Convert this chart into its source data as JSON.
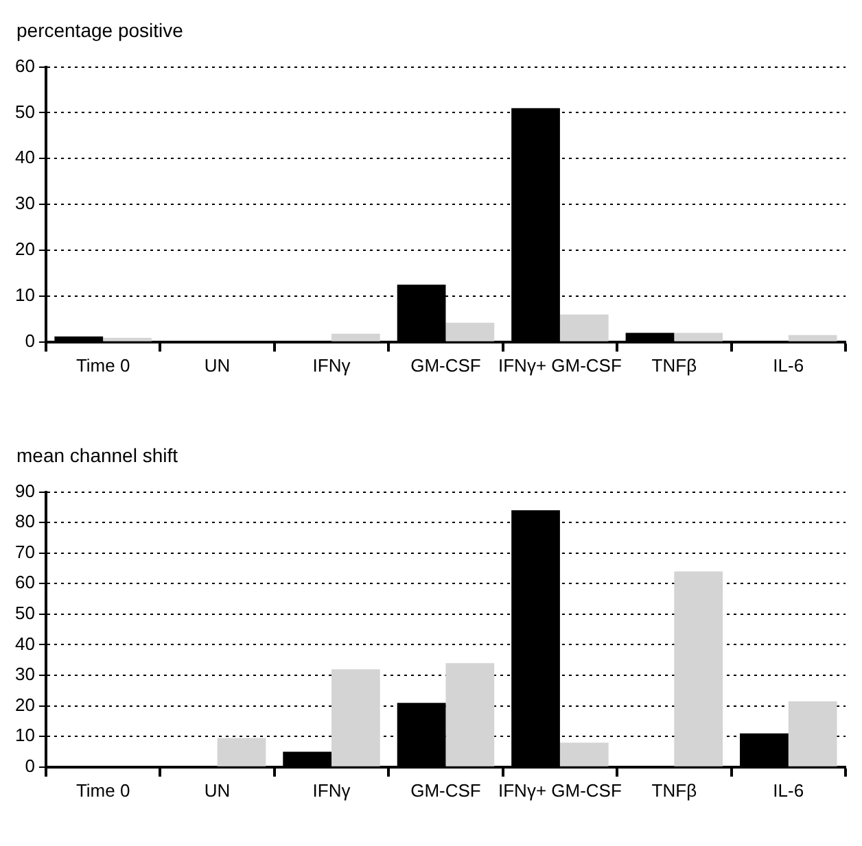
{
  "chart_data": [
    {
      "type": "bar",
      "ylabel": "percentage positive",
      "categories": [
        "Time 0",
        "UN",
        "IFNγ",
        "GM-CSF",
        "IFNγ+ GM-CSF",
        "TNFβ",
        "IL-6"
      ],
      "series": [
        {
          "color": "#000000",
          "values": [
            1.2,
            0,
            0,
            12.5,
            51,
            2,
            0
          ]
        },
        {
          "color": "#d4d4d4",
          "values": [
            0.9,
            0,
            1.8,
            4.2,
            6,
            2,
            1.5
          ]
        }
      ],
      "ylim": [
        0,
        60
      ],
      "yticks": [
        0,
        10,
        20,
        30,
        40,
        50,
        60
      ],
      "grid": "y",
      "legend": false
    },
    {
      "type": "bar",
      "ylabel": "mean channel shift",
      "categories": [
        "Time 0",
        "UN",
        "IFNγ",
        "GM-CSF",
        "IFNγ+ GM-CSF",
        "TNFβ",
        "IL-6"
      ],
      "series": [
        {
          "color": "#000000",
          "values": [
            0,
            0,
            5,
            21,
            84,
            0,
            11
          ]
        },
        {
          "color": "#d4d4d4",
          "values": [
            0,
            9.5,
            32,
            34,
            8,
            64,
            21.5
          ]
        }
      ],
      "ylim": [
        0,
        90
      ],
      "yticks": [
        0,
        10,
        20,
        30,
        40,
        50,
        60,
        70,
        80,
        90
      ],
      "grid": "y",
      "legend": false
    }
  ]
}
